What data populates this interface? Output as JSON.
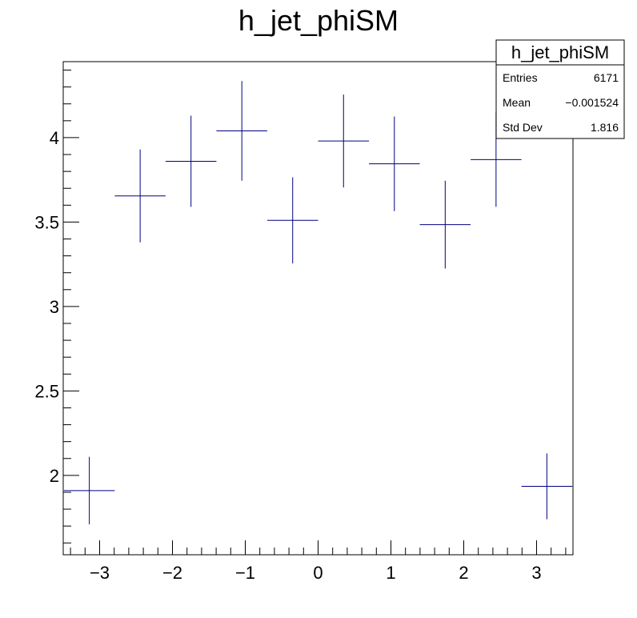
{
  "chart_data": {
    "type": "scatter",
    "title": "h_jet_phiSM",
    "xlabel": "",
    "ylabel": "",
    "xlim": [
      -3.5,
      3.5
    ],
    "ylim": [
      1.53,
      4.45
    ],
    "x_major_ticks": [
      -3,
      -2,
      -1,
      0,
      1,
      2,
      3
    ],
    "x_tick_labels": [
      "−3",
      "−2",
      "−1",
      "0",
      "1",
      "2",
      "3"
    ],
    "y_major_ticks": [
      2,
      2.5,
      3,
      3.5,
      4
    ],
    "y_tick_labels": [
      "2",
      "2.5",
      "3",
      "3.5",
      "4"
    ],
    "grid": false,
    "series": [
      {
        "color": "#000080",
        "points": [
          {
            "x": -3.1416,
            "xerr": 0.3491,
            "y": 1.91,
            "yerr": 0.2
          },
          {
            "x": -2.4435,
            "xerr": 0.3491,
            "y": 3.655,
            "yerr": 0.275
          },
          {
            "x": -1.7453,
            "xerr": 0.3491,
            "y": 3.86,
            "yerr": 0.27
          },
          {
            "x": -1.0472,
            "xerr": 0.3491,
            "y": 4.04,
            "yerr": 0.295
          },
          {
            "x": -0.3491,
            "xerr": 0.3491,
            "y": 3.51,
            "yerr": 0.255
          },
          {
            "x": 0.3491,
            "xerr": 0.3491,
            "y": 3.98,
            "yerr": 0.275
          },
          {
            "x": 1.0472,
            "xerr": 0.3491,
            "y": 3.845,
            "yerr": 0.28
          },
          {
            "x": 1.7453,
            "xerr": 0.3491,
            "y": 3.485,
            "yerr": 0.26
          },
          {
            "x": 2.4435,
            "xerr": 0.3491,
            "y": 3.87,
            "yerr": 0.28
          },
          {
            "x": 3.1416,
            "xerr": 0.3491,
            "y": 1.935,
            "yerr": 0.195
          }
        ]
      }
    ],
    "stats_box": {
      "title": "h_jet_phiSM",
      "placement": "top-right",
      "rows": [
        {
          "label": "Entries",
          "value": "6171"
        },
        {
          "label": "Mean",
          "value": "−0.001524"
        },
        {
          "label": "Std Dev",
          "value": "1.816"
        }
      ]
    }
  }
}
